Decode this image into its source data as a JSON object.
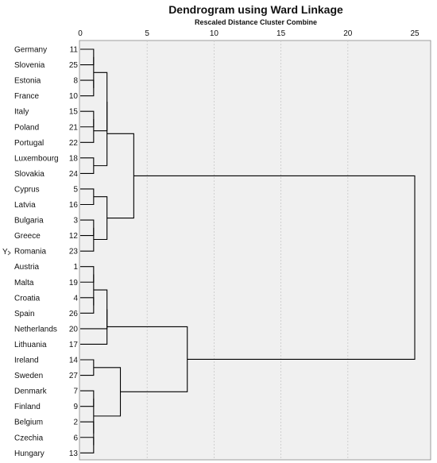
{
  "chart_data": {
    "type": "dendrogram",
    "title": "Dendrogram using Ward Linkage",
    "subtitle": "Rescaled Distance Cluster Combine",
    "ylabel": "Y",
    "x_ticks": [
      0,
      5,
      10,
      15,
      20,
      25
    ],
    "xlim": [
      0,
      25
    ],
    "grid": true,
    "colors": {
      "plot_bg": "#f0f0f0",
      "lines": "#000000",
      "grid": "#c8c8c8"
    },
    "leaves": [
      {
        "label": "Germany",
        "id": 11
      },
      {
        "label": "Slovenia",
        "id": 25
      },
      {
        "label": "Estonia",
        "id": 8
      },
      {
        "label": "France",
        "id": 10
      },
      {
        "label": "Italy",
        "id": 15
      },
      {
        "label": "Poland",
        "id": 21
      },
      {
        "label": "Portugal",
        "id": 22
      },
      {
        "label": "Luxembourg",
        "id": 18
      },
      {
        "label": "Slovakia",
        "id": 24
      },
      {
        "label": "Cyprus",
        "id": 5
      },
      {
        "label": "Latvia",
        "id": 16
      },
      {
        "label": "Bulgaria",
        "id": 3
      },
      {
        "label": "Greece",
        "id": 12
      },
      {
        "label": "Romania",
        "id": 23
      },
      {
        "label": "Austria",
        "id": 1
      },
      {
        "label": "Malta",
        "id": 19
      },
      {
        "label": "Croatia",
        "id": 4
      },
      {
        "label": "Spain",
        "id": 26
      },
      {
        "label": "Netherlands",
        "id": 20
      },
      {
        "label": "Lithuania",
        "id": 17
      },
      {
        "label": "Ireland",
        "id": 14
      },
      {
        "label": "Sweden",
        "id": 27
      },
      {
        "label": "Denmark",
        "id": 7
      },
      {
        "label": "Finland",
        "id": 9
      },
      {
        "label": "Belgium",
        "id": 2
      },
      {
        "label": "Czechia",
        "id": 6
      },
      {
        "label": "Hungary",
        "id": 13
      }
    ],
    "merges": [
      {
        "children": [
          "L0",
          "L1"
        ],
        "height": 1.0
      },
      {
        "children": [
          "L2",
          "L3"
        ],
        "height": 1.0
      },
      {
        "children": [
          "L4",
          "L5"
        ],
        "height": 1.0
      },
      {
        "children": [
          "L6",
          "m2"
        ],
        "height": 1.0
      },
      {
        "children": [
          "m0",
          "m1"
        ],
        "height": 1.0
      },
      {
        "children": [
          "m4",
          "m3"
        ],
        "height": 2.0
      },
      {
        "children": [
          "L7",
          "L8"
        ],
        "height": 1.0
      },
      {
        "children": [
          "m5",
          "m6"
        ],
        "height": 2.0
      },
      {
        "children": [
          "L9",
          "L10"
        ],
        "height": 1.0
      },
      {
        "children": [
          "L11",
          "L12"
        ],
        "height": 1.0
      },
      {
        "children": [
          "m9",
          "L13"
        ],
        "height": 1.0
      },
      {
        "children": [
          "m8",
          "m10"
        ],
        "height": 2.0
      },
      {
        "children": [
          "m7",
          "m11"
        ],
        "height": 4.0
      },
      {
        "children": [
          "L14",
          "L15"
        ],
        "height": 1.0
      },
      {
        "children": [
          "L16",
          "L17"
        ],
        "height": 1.0
      },
      {
        "children": [
          "m13",
          "m14"
        ],
        "height": 1.0
      },
      {
        "children": [
          "m15",
          "L18"
        ],
        "height": 2.0
      },
      {
        "children": [
          "m16",
          "L19"
        ],
        "height": 2.0
      },
      {
        "children": [
          "L20",
          "L21"
        ],
        "height": 1.0
      },
      {
        "children": [
          "L22",
          "L23"
        ],
        "height": 1.0
      },
      {
        "children": [
          "L25",
          "L26"
        ],
        "height": 1.0
      },
      {
        "children": [
          "L24",
          "m20"
        ],
        "height": 1.0
      },
      {
        "children": [
          "m19",
          "m21"
        ],
        "height": 1.0
      },
      {
        "children": [
          "m18",
          "m22"
        ],
        "height": 3.0
      },
      {
        "children": [
          "m17",
          "m23"
        ],
        "height": 8.0
      },
      {
        "children": [
          "m12",
          "m24"
        ],
        "height": 25.0
      }
    ]
  }
}
